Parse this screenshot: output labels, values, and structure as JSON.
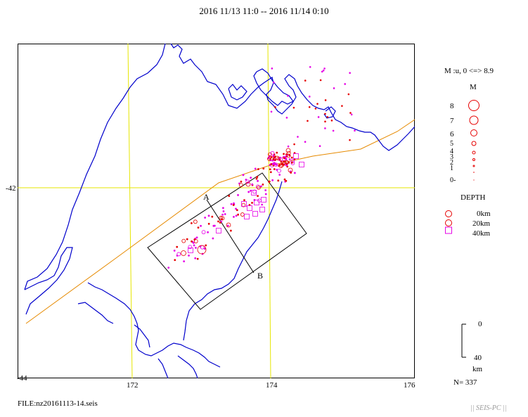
{
  "title": "2016 11/13 11:0 -- 2016 11/14 0:10",
  "map": {
    "x_ticks": [
      "172",
      "174",
      "176"
    ],
    "y_ticks": [
      "-42",
      "-44"
    ],
    "section_labels": {
      "start": "A",
      "end": "B"
    },
    "colors": {
      "coast": "#0000cc",
      "grid": "#e6e600",
      "fault": "#e68a00",
      "shallow": "#e60000",
      "deep": "#e600e6"
    }
  },
  "magnitude_legend": {
    "caption": "M :u, 0 <=> 8.9",
    "header": "M",
    "levels": [
      "8",
      "7",
      "6",
      "5",
      "4",
      "3",
      "2",
      "1",
      "0-"
    ]
  },
  "depth_legend": {
    "header": "DEPTH",
    "items": [
      {
        "label": "0km",
        "symbol": "circle"
      },
      {
        "label": "20km",
        "symbol": "circle"
      },
      {
        "label": "40km",
        "symbol": "square"
      }
    ]
  },
  "depth_scale": {
    "top": "0",
    "bottom": "40",
    "unit": "km"
  },
  "event_count": "N= 337",
  "file_label": "FILE:nz20161113-14.seis",
  "brand": "|| SEIS-PC ||"
}
